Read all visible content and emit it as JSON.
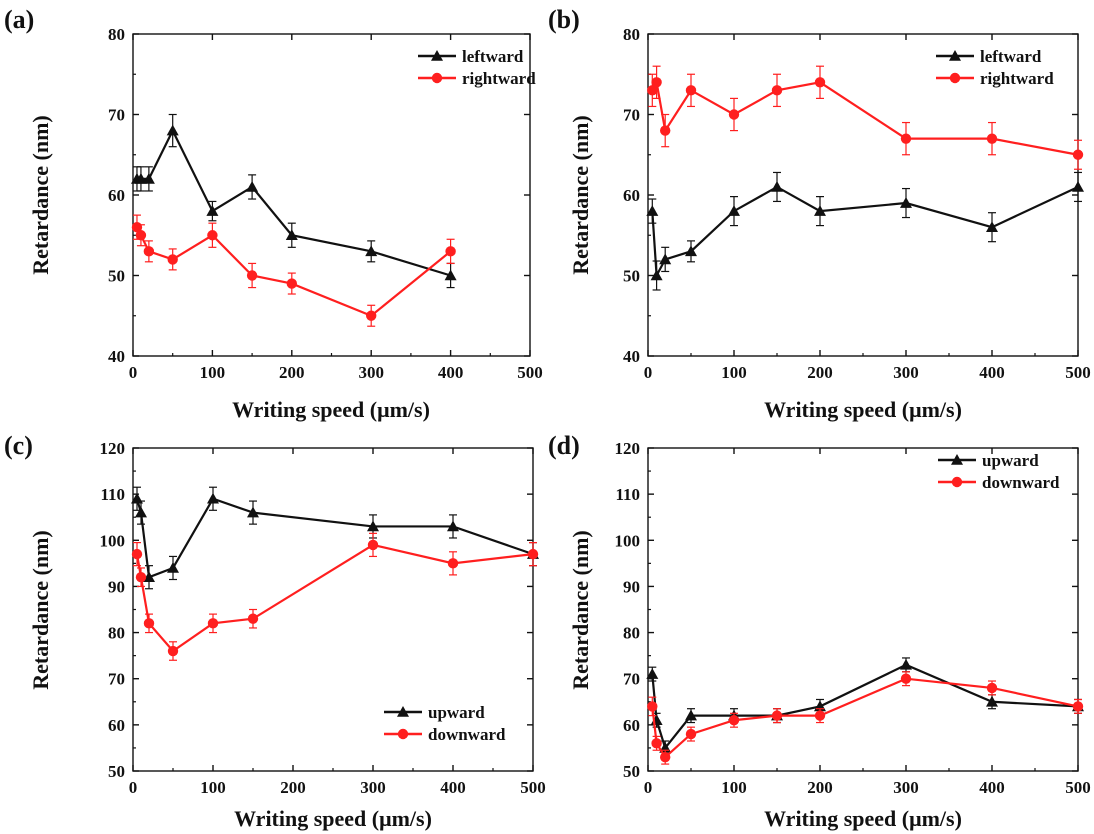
{
  "chart_data": [
    {
      "panel": "(a)",
      "type": "line",
      "xlabel": "Writing speed (μm/s)",
      "ylabel": "Retardance (nm)",
      "xlim": [
        0,
        500
      ],
      "ylim": [
        40,
        80
      ],
      "xticks": [
        0,
        100,
        200,
        300,
        400,
        500
      ],
      "yticks": [
        40,
        50,
        60,
        70,
        80
      ],
      "legend_position": "top-right",
      "series": [
        {
          "name": "leftward",
          "color": "#111111",
          "marker": "triangle",
          "x": [
            5,
            10,
            20,
            50,
            100,
            150,
            200,
            300,
            400
          ],
          "y": [
            62,
            62,
            62,
            68,
            58,
            61,
            55,
            53,
            50
          ],
          "err": [
            1.5,
            1.5,
            1.5,
            2,
            1.2,
            1.5,
            1.5,
            1.3,
            1.5
          ]
        },
        {
          "name": "rightward",
          "color": "#ff1f1f",
          "marker": "circle",
          "x": [
            5,
            10,
            20,
            50,
            100,
            150,
            200,
            300,
            400
          ],
          "y": [
            56,
            55,
            53,
            52,
            55,
            50,
            49,
            45,
            53
          ],
          "err": [
            1.5,
            1.3,
            1.3,
            1.3,
            1.5,
            1.5,
            1.3,
            1.3,
            1.5
          ]
        }
      ]
    },
    {
      "panel": "(b)",
      "type": "line",
      "xlabel": "Writing speed (μm/s)",
      "ylabel": "Retardance (nm)",
      "xlim": [
        0,
        500
      ],
      "ylim": [
        40,
        80
      ],
      "xticks": [
        0,
        100,
        200,
        300,
        400,
        500
      ],
      "yticks": [
        40,
        50,
        60,
        70,
        80
      ],
      "legend_position": "top-right",
      "series": [
        {
          "name": "leftward",
          "color": "#111111",
          "marker": "triangle",
          "x": [
            5,
            10,
            20,
            50,
            100,
            150,
            200,
            300,
            400,
            500
          ],
          "y": [
            58,
            50,
            52,
            53,
            58,
            61,
            58,
            59,
            56,
            61
          ],
          "err": [
            1.5,
            1.8,
            1.5,
            1.3,
            1.8,
            1.8,
            1.8,
            1.8,
            1.8,
            1.8
          ]
        },
        {
          "name": "rightward",
          "color": "#ff1f1f",
          "marker": "circle",
          "x": [
            5,
            10,
            20,
            50,
            100,
            150,
            200,
            300,
            400,
            500
          ],
          "y": [
            73,
            74,
            68,
            73,
            70,
            73,
            74,
            67,
            67,
            65
          ],
          "err": [
            2,
            2,
            2,
            2,
            2,
            2,
            2,
            2,
            2,
            1.8
          ]
        }
      ]
    },
    {
      "panel": "(c)",
      "type": "line",
      "xlabel": "Writing speed (μm/s)",
      "ylabel": "Retardance (nm)",
      "xlim": [
        0,
        500
      ],
      "ylim": [
        50,
        120
      ],
      "xticks": [
        0,
        100,
        200,
        300,
        400,
        500
      ],
      "yticks": [
        50,
        60,
        70,
        80,
        90,
        100,
        110,
        120
      ],
      "legend_position": "bottom-right",
      "series": [
        {
          "name": "upward",
          "color": "#111111",
          "marker": "triangle",
          "x": [
            5,
            10,
            20,
            50,
            100,
            150,
            300,
            400,
            500
          ],
          "y": [
            109,
            106,
            92,
            94,
            109,
            106,
            103,
            103,
            97
          ],
          "err": [
            2.5,
            2.5,
            2.5,
            2.5,
            2.5,
            2.5,
            2.5,
            2.5,
            2.5
          ]
        },
        {
          "name": "downward",
          "color": "#ff1f1f",
          "marker": "circle",
          "x": [
            5,
            10,
            20,
            50,
            100,
            150,
            300,
            400,
            500
          ],
          "y": [
            97,
            92,
            82,
            76,
            82,
            83,
            99,
            95,
            97
          ],
          "err": [
            2.5,
            2,
            2,
            2,
            2,
            2,
            2.5,
            2.5,
            2.5
          ]
        }
      ]
    },
    {
      "panel": "(d)",
      "type": "line",
      "xlabel": "Writing speed (μm/s)",
      "ylabel": "Retardance (nm)",
      "xlim": [
        0,
        500
      ],
      "ylim": [
        50,
        120
      ],
      "xticks": [
        0,
        100,
        200,
        300,
        400,
        500
      ],
      "yticks": [
        50,
        60,
        70,
        80,
        90,
        100,
        110,
        120
      ],
      "legend_position": "top-right",
      "series": [
        {
          "name": "upward",
          "color": "#111111",
          "marker": "triangle",
          "x": [
            5,
            10,
            20,
            50,
            100,
            150,
            200,
            300,
            400,
            500
          ],
          "y": [
            71,
            61,
            55,
            62,
            62,
            62,
            64,
            73,
            65,
            64
          ],
          "err": [
            1.5,
            1.5,
            1.5,
            1.5,
            1.5,
            1.5,
            1.5,
            1.5,
            1.5,
            1.5
          ]
        },
        {
          "name": "downward",
          "color": "#ff1f1f",
          "marker": "circle",
          "x": [
            5,
            10,
            20,
            50,
            100,
            150,
            200,
            300,
            400,
            500
          ],
          "y": [
            64,
            56,
            53,
            58,
            61,
            62,
            62,
            70,
            68,
            64
          ],
          "err": [
            2,
            1.5,
            1.5,
            1.5,
            1.5,
            1.5,
            1.5,
            1.5,
            1.5,
            1.5
          ]
        }
      ]
    }
  ]
}
